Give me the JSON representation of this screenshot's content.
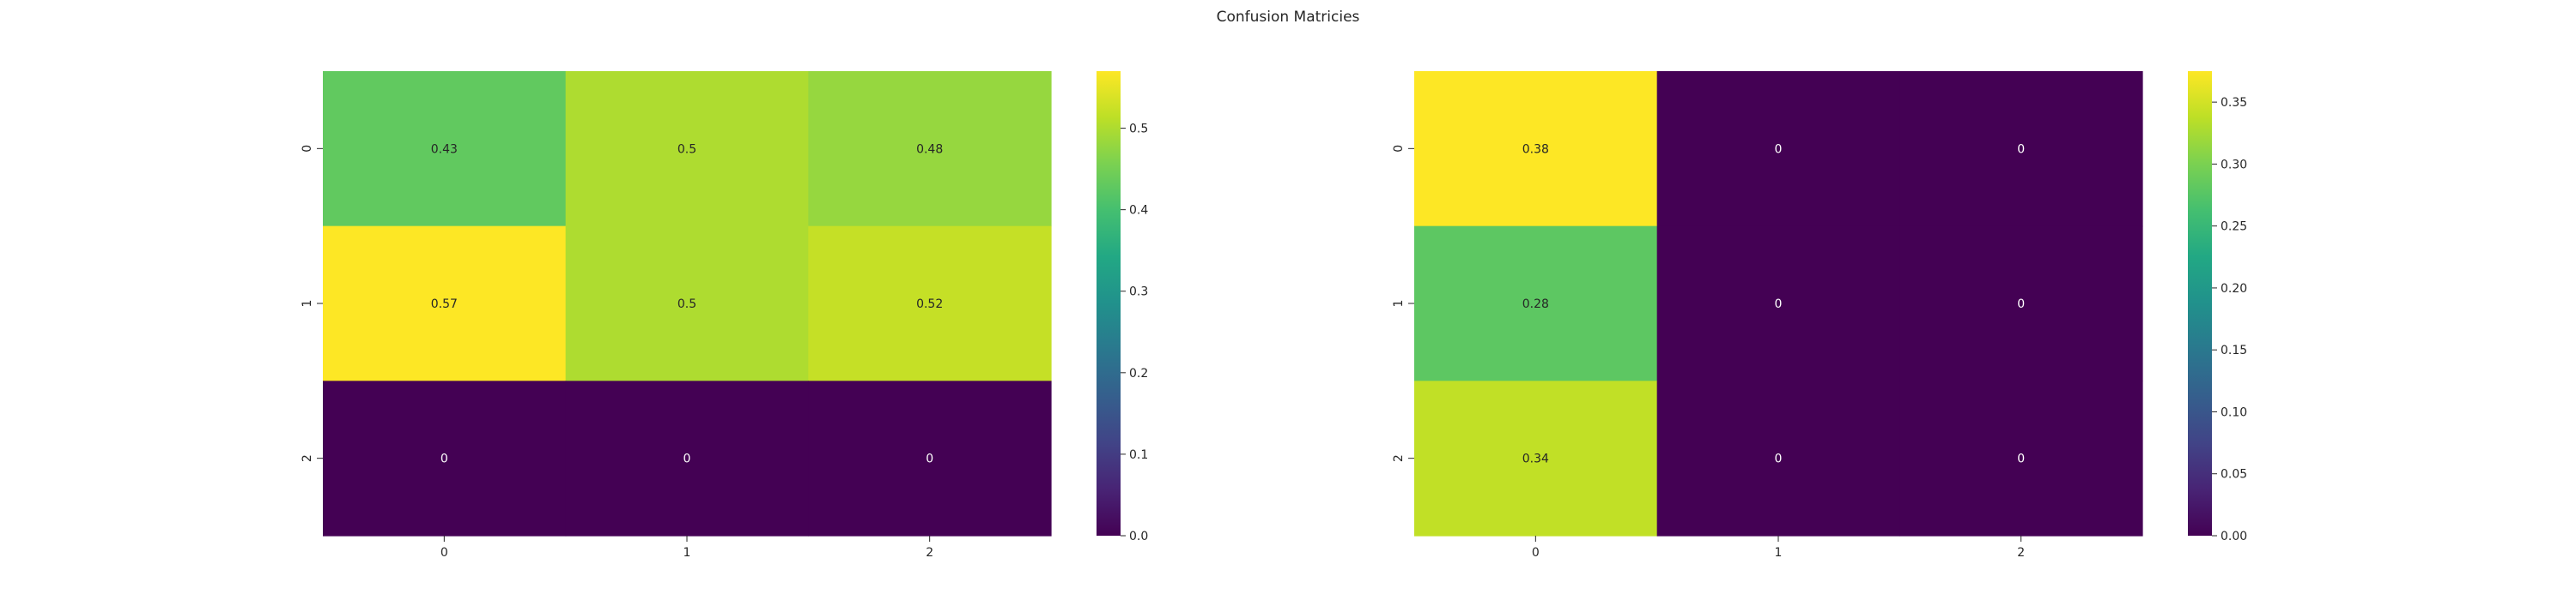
{
  "title": "Confusion Matricies",
  "chart_data": [
    {
      "type": "heatmap",
      "x_tick_labels": [
        "0",
        "1",
        "2"
      ],
      "y_tick_labels": [
        "0",
        "1",
        "2"
      ],
      "values": [
        [
          0.43,
          0.5,
          0.48
        ],
        [
          0.57,
          0.5,
          0.52
        ],
        [
          0,
          0,
          0
        ]
      ],
      "cell_labels": [
        [
          "0.43",
          "0.5",
          "0.48"
        ],
        [
          "0.57",
          "0.5",
          "0.52"
        ],
        [
          "0",
          "0",
          "0"
        ]
      ],
      "vmin": 0,
      "vmax": 0.57,
      "colormap": "viridis",
      "colorbar_ticks": [
        0.0,
        0.1,
        0.2,
        0.3,
        0.4,
        0.5
      ],
      "colorbar_tick_labels": [
        "0.0",
        "0.1",
        "0.2",
        "0.3",
        "0.4",
        "0.5"
      ]
    },
    {
      "type": "heatmap",
      "x_tick_labels": [
        "0",
        "1",
        "2"
      ],
      "y_tick_labels": [
        "0",
        "1",
        "2"
      ],
      "values": [
        [
          0.38,
          0,
          0
        ],
        [
          0.28,
          0,
          0
        ],
        [
          0.34,
          0,
          0
        ]
      ],
      "cell_labels": [
        [
          "0.38",
          "0",
          "0"
        ],
        [
          "0.28",
          "0",
          "0"
        ],
        [
          "0.34",
          "0",
          "0"
        ]
      ],
      "vmin": 0,
      "vmax": 0.375,
      "colormap": "viridis",
      "colorbar_ticks": [
        0.0,
        0.05,
        0.1,
        0.15,
        0.2,
        0.25,
        0.3,
        0.35
      ],
      "colorbar_tick_labels": [
        "0.00",
        "0.05",
        "0.10",
        "0.15",
        "0.20",
        "0.25",
        "0.30",
        "0.35"
      ]
    }
  ]
}
